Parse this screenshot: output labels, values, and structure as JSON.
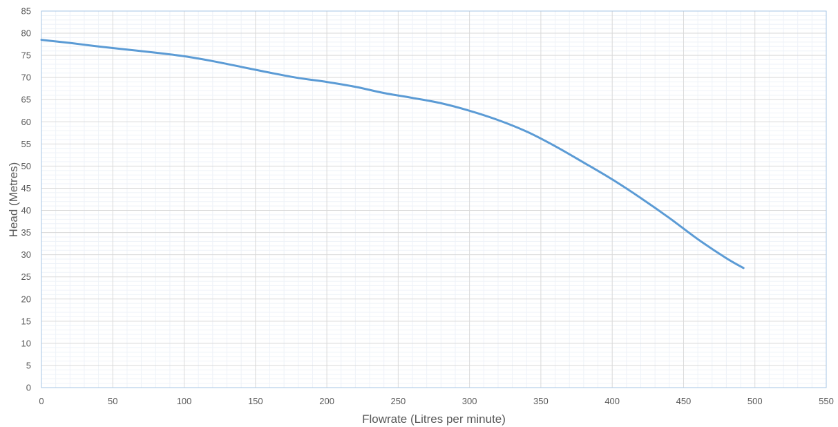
{
  "chart_data": {
    "type": "line",
    "title": "",
    "xlabel": "Flowrate (Litres per minute)",
    "ylabel": "Head (Metres)",
    "xlim": [
      0,
      550
    ],
    "ylim": [
      0,
      85
    ],
    "x_ticks": [
      0,
      50,
      100,
      150,
      200,
      250,
      300,
      350,
      400,
      450,
      500,
      550
    ],
    "y_ticks": [
      0,
      5,
      10,
      15,
      20,
      25,
      30,
      35,
      40,
      45,
      50,
      55,
      60,
      65,
      70,
      75,
      80,
      85
    ],
    "x_minor_step": 10,
    "y_minor_step": 1,
    "grid": true,
    "legend": "none",
    "series": [
      {
        "color": "#5b9bd5",
        "x": [
          0,
          20,
          40,
          60,
          80,
          100,
          120,
          140,
          160,
          180,
          200,
          220,
          240,
          260,
          280,
          300,
          320,
          340,
          360,
          380,
          400,
          420,
          440,
          460,
          480,
          492
        ],
        "y": [
          78.5,
          77.8,
          77.0,
          76.3,
          75.6,
          74.8,
          73.7,
          72.4,
          71.1,
          69.9,
          69.0,
          67.9,
          66.5,
          65.4,
          64.2,
          62.5,
          60.4,
          57.8,
          54.5,
          50.8,
          47.0,
          42.8,
          38.3,
          33.5,
          29.2,
          27.0
        ]
      }
    ],
    "colors": {
      "major_grid": "#d9d9d9",
      "minor_grid": "#eef2f8",
      "border": "#a6c4e4",
      "text": "#595959"
    }
  }
}
